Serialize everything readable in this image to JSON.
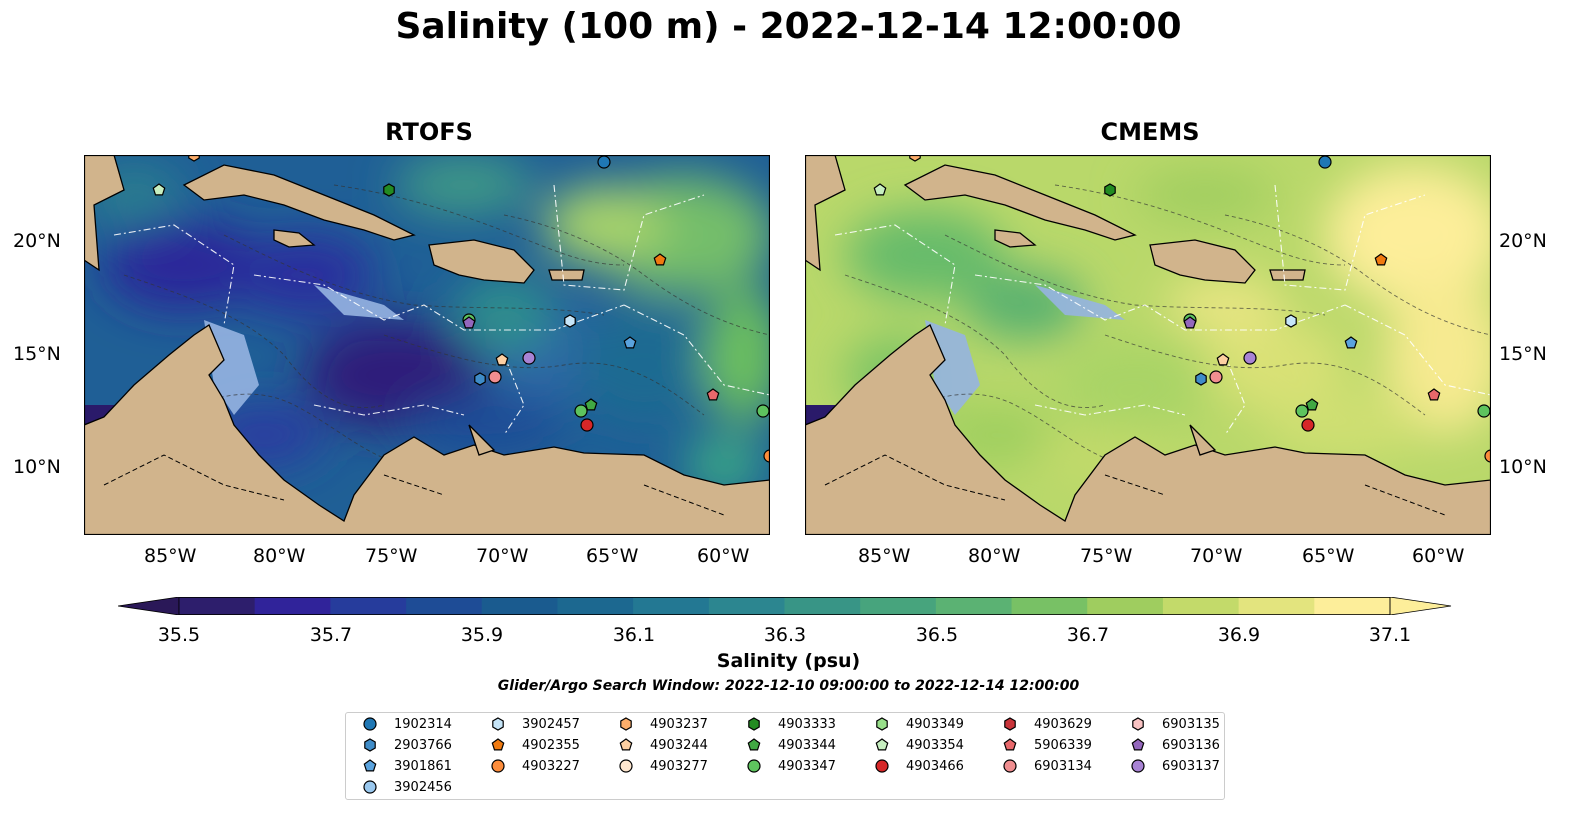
{
  "title": "Salinity (100 m) - 2022-12-14 12:00:00",
  "panels": [
    {
      "title": "RTOFS",
      "model": "rtofs"
    },
    {
      "title": "CMEMS",
      "model": "cmems"
    }
  ],
  "x_ticks": [
    "85°W",
    "80°W",
    "75°W",
    "70°W",
    "65°W",
    "60°W"
  ],
  "y_ticks": [
    "20°N",
    "15°N",
    "10°N"
  ],
  "colorbar": {
    "label": "Salinity (psu)",
    "ticks": [
      "35.5",
      "35.7",
      "35.9",
      "36.1",
      "36.3",
      "36.5",
      "36.7",
      "36.9",
      "37.1"
    ],
    "range": [
      35.5,
      37.1
    ],
    "colors": [
      "#2d1e6c",
      "#30239a",
      "#263c9c",
      "#1e4c96",
      "#1a5b8f",
      "#1c6890",
      "#237893",
      "#2c8690",
      "#389586",
      "#47a47d",
      "#5bb273",
      "#78c165",
      "#9fcd5f",
      "#c3da6a",
      "#e3e47e",
      "#fdee9a"
    ]
  },
  "search_window": "Glider/Argo Search Window: 2022-12-10 09:00:00 to 2022-12-14 12:00:00",
  "colors": {
    "land": "#d1b48c",
    "shelf": "#96b4e1",
    "coast": "#000000"
  },
  "legend": [
    {
      "id": "1902314",
      "marker": "circle",
      "color": "#1f77b4"
    },
    {
      "id": "2903766",
      "marker": "hexagon",
      "color": "#3f8cc8"
    },
    {
      "id": "3901861",
      "marker": "pentagon",
      "color": "#5aa3de"
    },
    {
      "id": "3902456",
      "marker": "circle",
      "color": "#9ac8ee"
    },
    {
      "id": "3902457",
      "marker": "hexagon",
      "color": "#c6e5f8"
    },
    {
      "id": "4902355",
      "marker": "pentagon",
      "color": "#f07a10"
    },
    {
      "id": "4903227",
      "marker": "circle",
      "color": "#fd8d3c"
    },
    {
      "id": "4903237",
      "marker": "hexagon",
      "color": "#fdae6b"
    },
    {
      "id": "4903244",
      "marker": "pentagon",
      "color": "#fdd0a2"
    },
    {
      "id": "4903277",
      "marker": "circle",
      "color": "#fee6ce"
    },
    {
      "id": "4903333",
      "marker": "hexagon",
      "color": "#238b22"
    },
    {
      "id": "4903344",
      "marker": "pentagon",
      "color": "#41a843"
    },
    {
      "id": "4903347",
      "marker": "circle",
      "color": "#5ec35e"
    },
    {
      "id": "4903349",
      "marker": "hexagon",
      "color": "#98df8a"
    },
    {
      "id": "4903354",
      "marker": "pentagon",
      "color": "#c7efc0"
    },
    {
      "id": "4903466",
      "marker": "circle",
      "color": "#d62728"
    },
    {
      "id": "4903629",
      "marker": "hexagon",
      "color": "#c9343a"
    },
    {
      "id": "5906339",
      "marker": "pentagon",
      "color": "#e8686b"
    },
    {
      "id": "6903134",
      "marker": "circle",
      "color": "#f08e90"
    },
    {
      "id": "6903135",
      "marker": "hexagon",
      "color": "#f9c3c3"
    },
    {
      "id": "6903136",
      "marker": "pentagon",
      "color": "#9467bd"
    },
    {
      "id": "6903137",
      "marker": "circle",
      "color": "#a883d4"
    }
  ]
}
